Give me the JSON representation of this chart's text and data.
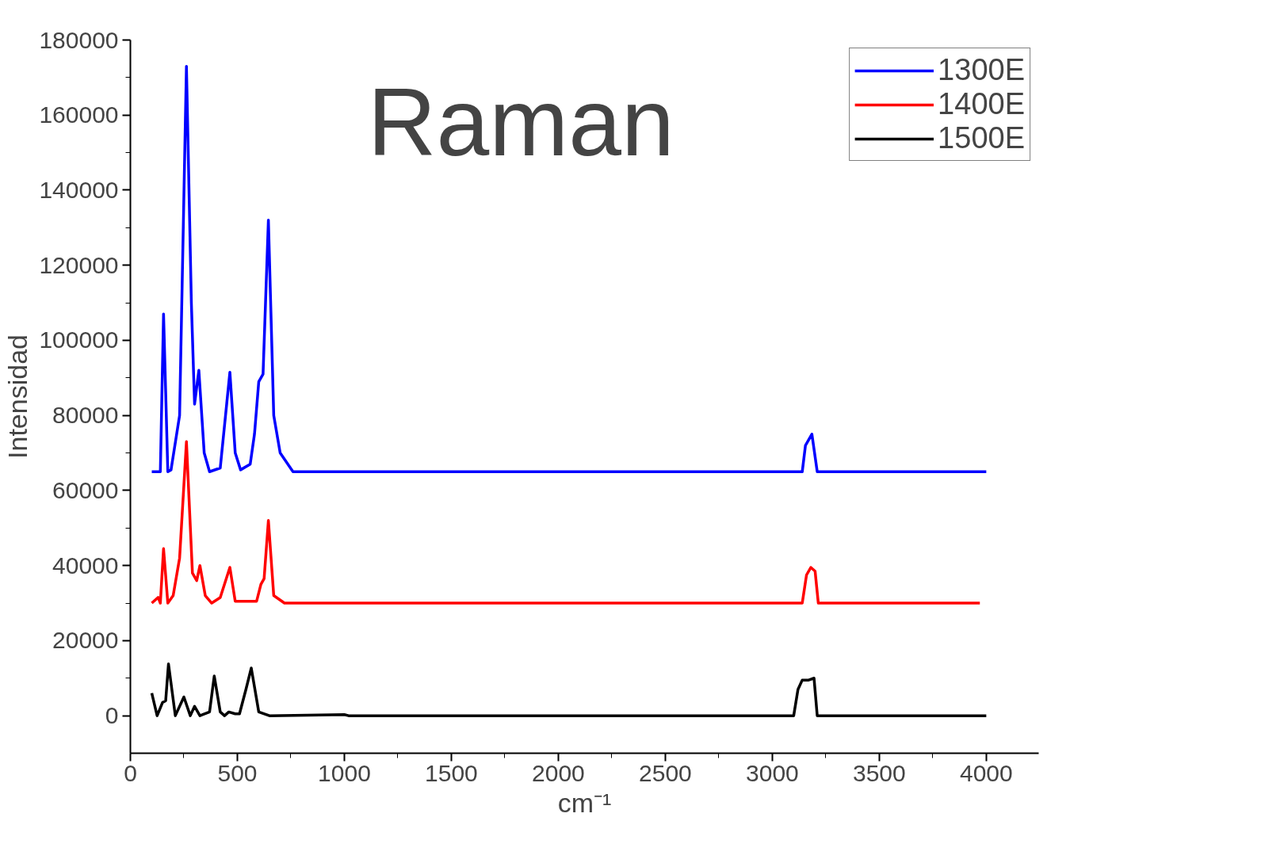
{
  "chart_data": {
    "type": "line",
    "title": "Raman",
    "xlabel": "cm⁻¹",
    "ylabel": "Intensidad",
    "xlim": [
      0,
      4245
    ],
    "ylim": [
      -10000,
      180000
    ],
    "xticks": [
      0,
      500,
      1000,
      1500,
      2000,
      2500,
      3000,
      3500,
      4000
    ],
    "yticks": [
      0,
      20000,
      40000,
      60000,
      80000,
      100000,
      120000,
      140000,
      160000,
      180000
    ],
    "grid": false,
    "legend": "top right",
    "line_style": "solid",
    "series": [
      {
        "name": "1300E",
        "color": "#0000ff",
        "x": [
          100,
          140,
          155,
          175,
          190,
          230,
          262,
          285,
          300,
          320,
          345,
          370,
          420,
          465,
          490,
          515,
          560,
          580,
          600,
          620,
          645,
          670,
          700,
          760,
          1500,
          2500,
          3140,
          3155,
          3185,
          3210,
          3500,
          4000
        ],
        "values": [
          65000,
          65000,
          107000,
          65000,
          65500,
          80000,
          173000,
          110000,
          83000,
          92000,
          70000,
          65000,
          66000,
          91500,
          70000,
          65500,
          67000,
          75000,
          89000,
          91000,
          132000,
          80000,
          70000,
          65000,
          65000,
          65000,
          65000,
          72000,
          75000,
          65000,
          65000,
          65000
        ]
      },
      {
        "name": "1400E",
        "color": "#ff0000",
        "x": [
          100,
          130,
          140,
          155,
          175,
          200,
          230,
          262,
          290,
          310,
          325,
          350,
          380,
          420,
          465,
          490,
          590,
          610,
          625,
          645,
          670,
          720,
          2000,
          3140,
          3160,
          3180,
          3200,
          3215,
          3500,
          3970
        ],
        "values": [
          30000,
          31500,
          30000,
          44500,
          30000,
          32000,
          42000,
          73000,
          38000,
          36000,
          40000,
          32000,
          30000,
          31500,
          39500,
          30500,
          30500,
          35000,
          36500,
          52000,
          32000,
          30000,
          30000,
          30000,
          37500,
          39500,
          38500,
          30000,
          30000,
          30000
        ]
      },
      {
        "name": "1500E",
        "color": "#000000",
        "x": [
          100,
          125,
          150,
          165,
          178,
          210,
          250,
          280,
          300,
          325,
          370,
          392,
          420,
          440,
          460,
          490,
          510,
          540,
          565,
          600,
          650,
          1000,
          1020,
          2000,
          3100,
          3120,
          3140,
          3170,
          3195,
          3210,
          3500,
          4000
        ],
        "values": [
          6000,
          0,
          3500,
          4000,
          13800,
          0,
          5000,
          0,
          2500,
          0,
          1000,
          10600,
          1000,
          0,
          1000,
          500,
          500,
          7000,
          12700,
          1000,
          0,
          300,
          0,
          0,
          0,
          7000,
          9500,
          9500,
          10000,
          0,
          0,
          0
        ]
      }
    ]
  }
}
